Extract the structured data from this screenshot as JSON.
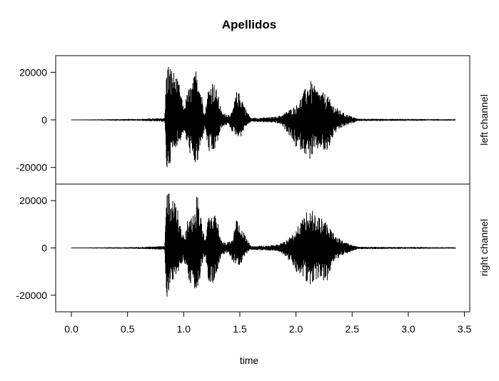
{
  "chart_data": {
    "type": "line",
    "title": "Apellidos",
    "xlabel": "time",
    "xlim": [
      0.0,
      3.42
    ],
    "x_ticks": [
      "0.0",
      "0.5",
      "1.0",
      "1.5",
      "2.0",
      "2.5",
      "3.0",
      "3.5"
    ],
    "x_tick_values": [
      0.0,
      0.5,
      1.0,
      1.5,
      2.0,
      2.5,
      3.0,
      3.5
    ],
    "grid": false,
    "legend": "none",
    "line_color": "#000000",
    "panels": [
      {
        "ylabel": "left channel",
        "ylim": [
          -27000,
          27000
        ],
        "y_ticks": [
          "20000",
          "0",
          "-20000"
        ],
        "y_tick_values": [
          20000,
          0,
          -20000
        ],
        "envelope": [
          {
            "x": 0.0,
            "max": 100,
            "min": -100
          },
          {
            "x": 0.35,
            "max": 300,
            "min": -300
          },
          {
            "x": 0.6,
            "max": 400,
            "min": -400
          },
          {
            "x": 0.83,
            "max": 800,
            "min": -800
          },
          {
            "x": 0.85,
            "max": 25000,
            "min": -23000
          },
          {
            "x": 0.88,
            "max": 23000,
            "min": -18000
          },
          {
            "x": 0.92,
            "max": 20000,
            "min": -12000
          },
          {
            "x": 0.96,
            "max": 15000,
            "min": -10000
          },
          {
            "x": 1.0,
            "max": 5000,
            "min": -5000
          },
          {
            "x": 1.04,
            "max": 13000,
            "min": -12000
          },
          {
            "x": 1.08,
            "max": 16000,
            "min": -18000
          },
          {
            "x": 1.12,
            "max": 24000,
            "min": -20000
          },
          {
            "x": 1.15,
            "max": 14000,
            "min": -12000
          },
          {
            "x": 1.19,
            "max": 3000,
            "min": -3000
          },
          {
            "x": 1.22,
            "max": 14000,
            "min": -14000
          },
          {
            "x": 1.26,
            "max": 17000,
            "min": -15000
          },
          {
            "x": 1.3,
            "max": 12000,
            "min": -10000
          },
          {
            "x": 1.34,
            "max": 3000,
            "min": -3000
          },
          {
            "x": 1.4,
            "max": 2500,
            "min": -2000
          },
          {
            "x": 1.43,
            "max": 3000,
            "min": -5000
          },
          {
            "x": 1.47,
            "max": 12000,
            "min": -7000
          },
          {
            "x": 1.51,
            "max": 11000,
            "min": -7000
          },
          {
            "x": 1.55,
            "max": 5000,
            "min": -3000
          },
          {
            "x": 1.6,
            "max": 800,
            "min": -800
          },
          {
            "x": 1.8,
            "max": 1200,
            "min": -1200
          },
          {
            "x": 1.87,
            "max": 2000,
            "min": -2000
          },
          {
            "x": 1.93,
            "max": 4000,
            "min": -6000
          },
          {
            "x": 2.0,
            "max": 6000,
            "min": -12000
          },
          {
            "x": 2.06,
            "max": 11000,
            "min": -13000
          },
          {
            "x": 2.12,
            "max": 17000,
            "min": -17000
          },
          {
            "x": 2.17,
            "max": 14000,
            "min": -14000
          },
          {
            "x": 2.22,
            "max": 12000,
            "min": -12000
          },
          {
            "x": 2.27,
            "max": 11000,
            "min": -15000
          },
          {
            "x": 2.34,
            "max": 6000,
            "min": -6000
          },
          {
            "x": 2.42,
            "max": 3000,
            "min": -3000
          },
          {
            "x": 2.55,
            "max": 500,
            "min": -500
          },
          {
            "x": 3.0,
            "max": 400,
            "min": -400
          },
          {
            "x": 3.4,
            "max": 300,
            "min": -300
          }
        ]
      },
      {
        "ylabel": "right channel",
        "ylim": [
          -27000,
          27000
        ],
        "y_ticks": [
          "20000",
          "0",
          "-20000"
        ],
        "y_tick_values": [
          20000,
          0,
          -20000
        ],
        "envelope": [
          {
            "x": 0.0,
            "max": 100,
            "min": -100
          },
          {
            "x": 0.35,
            "max": 300,
            "min": -300
          },
          {
            "x": 0.6,
            "max": 400,
            "min": -400
          },
          {
            "x": 0.83,
            "max": 800,
            "min": -800
          },
          {
            "x": 0.85,
            "max": 24000,
            "min": -23000
          },
          {
            "x": 0.88,
            "max": 23000,
            "min": -18000
          },
          {
            "x": 0.92,
            "max": 21000,
            "min": -12000
          },
          {
            "x": 0.96,
            "max": 15000,
            "min": -10000
          },
          {
            "x": 1.0,
            "max": 5000,
            "min": -5000
          },
          {
            "x": 1.04,
            "max": 13000,
            "min": -12000
          },
          {
            "x": 1.08,
            "max": 16000,
            "min": -19000
          },
          {
            "x": 1.12,
            "max": 24000,
            "min": -20000
          },
          {
            "x": 1.15,
            "max": 14000,
            "min": -12000
          },
          {
            "x": 1.19,
            "max": 3000,
            "min": -3000
          },
          {
            "x": 1.22,
            "max": 13000,
            "min": -14000
          },
          {
            "x": 1.26,
            "max": 16000,
            "min": -15000
          },
          {
            "x": 1.3,
            "max": 12000,
            "min": -10000
          },
          {
            "x": 1.34,
            "max": 3000,
            "min": -3000
          },
          {
            "x": 1.4,
            "max": 2500,
            "min": -2000
          },
          {
            "x": 1.43,
            "max": 3000,
            "min": -5000
          },
          {
            "x": 1.47,
            "max": 12000,
            "min": -8000
          },
          {
            "x": 1.51,
            "max": 10000,
            "min": -7000
          },
          {
            "x": 1.55,
            "max": 5000,
            "min": -3000
          },
          {
            "x": 1.6,
            "max": 800,
            "min": -800
          },
          {
            "x": 1.8,
            "max": 1200,
            "min": -1200
          },
          {
            "x": 1.87,
            "max": 2000,
            "min": -2000
          },
          {
            "x": 1.93,
            "max": 4000,
            "min": -5000
          },
          {
            "x": 2.0,
            "max": 8000,
            "min": -10000
          },
          {
            "x": 2.06,
            "max": 12000,
            "min": -12000
          },
          {
            "x": 2.12,
            "max": 19000,
            "min": -16000
          },
          {
            "x": 2.17,
            "max": 14000,
            "min": -14000
          },
          {
            "x": 2.22,
            "max": 13000,
            "min": -12000
          },
          {
            "x": 2.27,
            "max": 11000,
            "min": -15000
          },
          {
            "x": 2.34,
            "max": 6000,
            "min": -6000
          },
          {
            "x": 2.42,
            "max": 3000,
            "min": -3000
          },
          {
            "x": 2.55,
            "max": 500,
            "min": -500
          },
          {
            "x": 3.0,
            "max": 400,
            "min": -400
          },
          {
            "x": 3.4,
            "max": 300,
            "min": -300
          }
        ]
      }
    ]
  }
}
